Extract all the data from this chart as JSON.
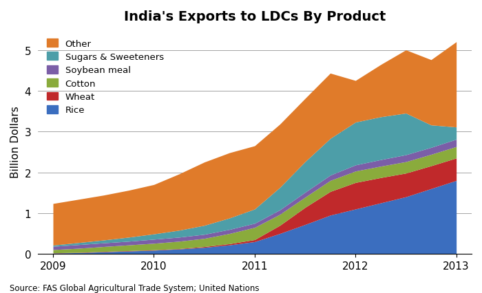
{
  "title": "India's Exports to LDCs By Product",
  "ylabel": "Billion Dollars",
  "source": "Source: FAS Global Agricultural Trade System; United Nations",
  "years": [
    2009,
    2009.25,
    2009.5,
    2009.75,
    2010,
    2010.25,
    2010.5,
    2010.75,
    2011,
    2011.25,
    2011.5,
    2011.75,
    2012,
    2012.25,
    2012.5,
    2012.75,
    2013
  ],
  "series": {
    "Rice": [
      0.02,
      0.03,
      0.05,
      0.07,
      0.09,
      0.12,
      0.16,
      0.22,
      0.3,
      0.5,
      0.72,
      0.95,
      1.1,
      1.25,
      1.4,
      1.6,
      1.8
    ],
    "Wheat": [
      0.005,
      0.007,
      0.01,
      0.01,
      0.01,
      0.01,
      0.02,
      0.03,
      0.05,
      0.2,
      0.42,
      0.58,
      0.65,
      0.62,
      0.58,
      0.56,
      0.55
    ],
    "Cotton": [
      0.08,
      0.1,
      0.12,
      0.14,
      0.16,
      0.18,
      0.2,
      0.25,
      0.3,
      0.27,
      0.25,
      0.27,
      0.28,
      0.28,
      0.28,
      0.28,
      0.28
    ],
    "Soybean meal": [
      0.08,
      0.09,
      0.09,
      0.09,
      0.1,
      0.1,
      0.1,
      0.1,
      0.1,
      0.11,
      0.12,
      0.13,
      0.15,
      0.16,
      0.17,
      0.17,
      0.18
    ],
    "Sugars & Sweeteners": [
      0.03,
      0.05,
      0.07,
      0.1,
      0.13,
      0.17,
      0.22,
      0.28,
      0.35,
      0.55,
      0.75,
      0.9,
      1.05,
      1.05,
      1.02,
      0.55,
      0.3
    ],
    "Other": [
      1.02,
      1.06,
      1.1,
      1.15,
      1.21,
      1.38,
      1.55,
      1.6,
      1.55,
      1.55,
      1.55,
      1.6,
      1.02,
      1.28,
      1.55,
      1.6,
      2.09
    ]
  },
  "colors": {
    "Rice": "#3B6EBF",
    "Wheat": "#C0292B",
    "Cotton": "#8AAB3C",
    "Soybean meal": "#7B5EA7",
    "Sugars & Sweeteners": "#4D9EA8",
    "Other": "#E07B2A"
  },
  "xlim": [
    2008.85,
    2013.15
  ],
  "ylim": [
    0,
    5.5
  ],
  "yticks": [
    0,
    1,
    2,
    3,
    4,
    5
  ],
  "xticks": [
    2009,
    2010,
    2011,
    2012,
    2013
  ],
  "figsize": [
    7.0,
    4.27
  ],
  "dpi": 100
}
